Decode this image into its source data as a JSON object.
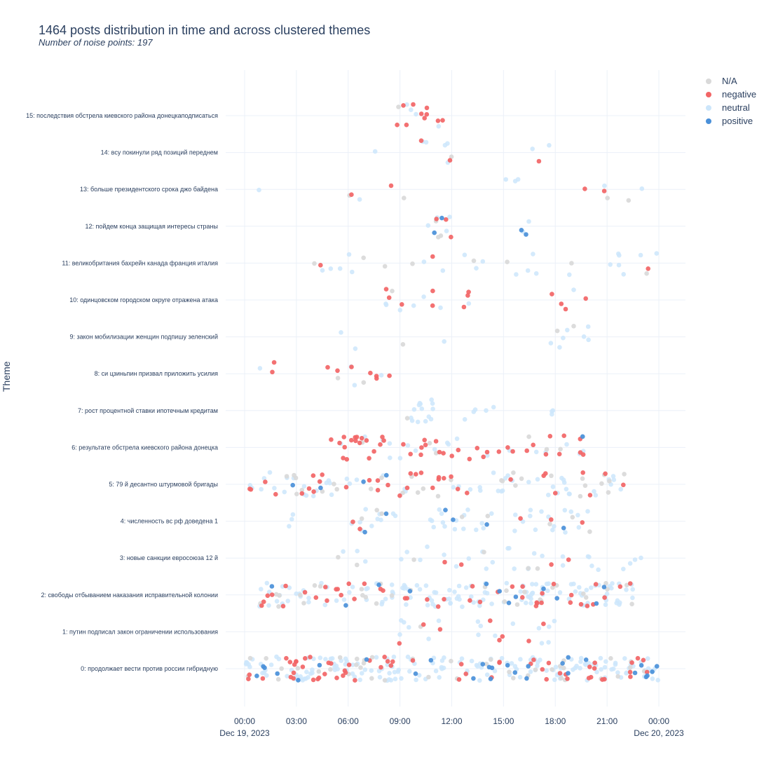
{
  "title": "1464 posts distribution in time and across clustered themes",
  "subtitle": "Number of noise points: 197",
  "chart_data": {
    "type": "scatter",
    "title": "1464 posts distribution in time and across clustered themes",
    "subtitle": "Number of noise points: 197",
    "xlabel": "",
    "ylabel": "Theme",
    "x_range_hours": [
      -0.5,
      25.5
    ],
    "x_ticks": [
      {
        "hour": 0,
        "label": "00:00",
        "sublabel": "Dec 19, 2023"
      },
      {
        "hour": 3,
        "label": "03:00",
        "sublabel": ""
      },
      {
        "hour": 6,
        "label": "06:00",
        "sublabel": ""
      },
      {
        "hour": 9,
        "label": "09:00",
        "sublabel": ""
      },
      {
        "hour": 12,
        "label": "12:00",
        "sublabel": ""
      },
      {
        "hour": 15,
        "label": "15:00",
        "sublabel": ""
      },
      {
        "hour": 18,
        "label": "18:00",
        "sublabel": ""
      },
      {
        "hour": 21,
        "label": "21:00",
        "sublabel": ""
      },
      {
        "hour": 24,
        "label": "00:00",
        "sublabel": "Dec 20, 2023"
      }
    ],
    "themes": [
      "0: продолжает вести против россии гибридную",
      "1: путин подписал закон ограничении использования",
      "2: свободы отбыванием наказания исправительной колонии",
      "3: новые санкции евросоюза 12 й",
      "4: численность вс рф доведена 1",
      "5: 79 й десантно штурмовой бригады",
      "6: результате обстрела киевского района донецка",
      "7: рост процентной ставки ипотечным кредитам",
      "8: си цзиньпин призвал приложить усилия",
      "9: закон мобилизации женщин подпишу зеленский",
      "10: одинцовском городском округе отражена атака",
      "11: великобритания бахрейн канада франция италия",
      "12: пойдем конца защищая интересы страны",
      "13: больше президентского срока джо байдена",
      "14: всу покинули ряд позиций переднем",
      "15: последствия обстрела киевского района донецкаподписаться"
    ],
    "legend_position": "top-right",
    "grid": true,
    "series": [
      {
        "name": "N/A",
        "color": "#d9d9d9"
      },
      {
        "name": "negative",
        "color": "#f26566"
      },
      {
        "name": "neutral",
        "color": "#cce6fb"
      },
      {
        "name": "positive",
        "color": "#4a90d9"
      }
    ],
    "clusters": [
      {
        "theme": 15,
        "spans": [
          [
            8.6,
            11.8
          ]
        ],
        "counts": [
          1,
          10,
          4,
          0
        ]
      },
      {
        "theme": 14,
        "spans": [
          [
            6.0,
            8.0
          ],
          [
            9.5,
            12.0
          ],
          [
            15.5,
            17.8
          ],
          [
            20.5,
            20.6
          ]
        ],
        "counts": [
          1,
          3,
          8,
          0
        ]
      },
      {
        "theme": 13,
        "spans": [
          [
            0.5,
            1.5
          ],
          [
            5.5,
            9.5
          ],
          [
            14.5,
            16.5
          ],
          [
            19.5,
            24.0
          ]
        ],
        "counts": [
          4,
          4,
          7,
          0
        ]
      },
      {
        "theme": 12,
        "spans": [
          [
            10.5,
            12.0
          ],
          [
            15.5,
            16.5
          ]
        ],
        "counts": [
          3,
          3,
          6,
          4
        ]
      },
      {
        "theme": 11,
        "spans": [
          [
            4.0,
            11.5
          ],
          [
            12.5,
            17.0
          ],
          [
            18.5,
            24.0
          ]
        ],
        "counts": [
          8,
          3,
          22,
          0
        ]
      },
      {
        "theme": 10,
        "spans": [
          [
            0.0,
            0.1
          ],
          [
            8.0,
            11.5
          ],
          [
            12.5,
            13.0
          ],
          [
            17.5,
            20.0
          ]
        ],
        "counts": [
          1,
          12,
          8,
          0
        ]
      },
      {
        "theme": 9,
        "spans": [
          [
            5.5,
            6.5
          ],
          [
            8.8,
            9.2
          ],
          [
            11.5,
            11.8
          ],
          [
            17.5,
            20.5
          ]
        ],
        "counts": [
          3,
          0,
          10,
          0
        ]
      },
      {
        "theme": 8,
        "spans": [
          [
            0.2,
            2.5
          ],
          [
            4.0,
            9.0
          ]
        ],
        "counts": [
          2,
          9,
          4,
          0
        ]
      },
      {
        "theme": 7,
        "spans": [
          [
            9.0,
            11.0
          ],
          [
            12.5,
            14.5
          ],
          [
            17.8,
            17.9
          ]
        ],
        "counts": [
          1,
          0,
          22,
          0
        ]
      },
      {
        "theme": 6,
        "spans": [
          [
            5.0,
            8.5
          ],
          [
            9.0,
            20.5
          ]
        ],
        "counts": [
          6,
          45,
          20,
          1
        ]
      },
      {
        "theme": 5,
        "spans": [
          [
            0.2,
            22.0
          ]
        ],
        "counts": [
          30,
          35,
          55,
          4
        ]
      },
      {
        "theme": 4,
        "spans": [
          [
            2.5,
            3.0
          ],
          [
            6.0,
            9.0
          ],
          [
            10.5,
            14.5
          ],
          [
            15.5,
            20.5
          ]
        ],
        "counts": [
          8,
          5,
          45,
          6
        ]
      },
      {
        "theme": 3,
        "spans": [
          [
            4.5,
            23.0
          ]
        ],
        "counts": [
          6,
          4,
          30,
          0
        ]
      },
      {
        "theme": 2,
        "spans": [
          [
            0.8,
            22.5
          ]
        ],
        "counts": [
          30,
          45,
          130,
          12
        ]
      },
      {
        "theme": 1,
        "spans": [
          [
            8.5,
            11.5
          ],
          [
            13.5,
            18.0
          ]
        ],
        "counts": [
          1,
          8,
          16,
          0
        ]
      },
      {
        "theme": 0,
        "spans": [
          [
            0.0,
            24.0
          ]
        ],
        "counts": [
          40,
          60,
          170,
          28
        ]
      }
    ]
  }
}
